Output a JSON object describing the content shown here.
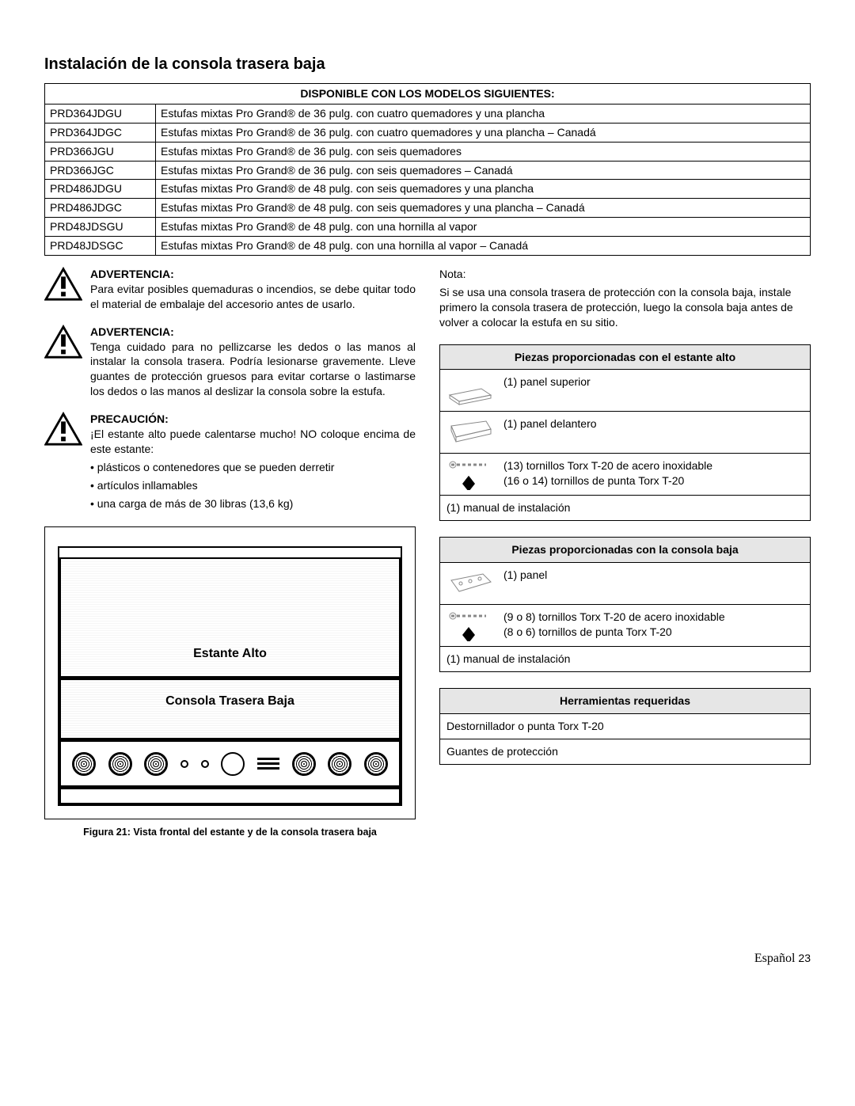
{
  "title": "Instalación de la consola trasera baja",
  "models_header": "DISPONIBLE CON LOS MODELOS SIGUIENTES:",
  "models": [
    {
      "code": "PRD364JDGU",
      "desc": "Estufas mixtas Pro Grand® de 36 pulg. con cuatro quemadores y una plancha"
    },
    {
      "code": "PRD364JDGC",
      "desc": "Estufas mixtas Pro Grand® de 36 pulg. con cuatro quemadores y una plancha – Canadá"
    },
    {
      "code": "PRD366JGU",
      "desc": "Estufas mixtas Pro Grand® de 36 pulg. con seis quemadores"
    },
    {
      "code": "PRD366JGC",
      "desc": "Estufas mixtas Pro Grand® de 36 pulg. con seis quemadores – Canadá"
    },
    {
      "code": "PRD486JDGU",
      "desc": "Estufas mixtas Pro Grand® de 48 pulg. con seis quemadores y una plancha"
    },
    {
      "code": "PRD486JDGC",
      "desc": "Estufas mixtas Pro Grand® de 48 pulg. con seis quemadores y una plancha – Canadá"
    },
    {
      "code": "PRD48JDSGU",
      "desc": "Estufas mixtas Pro Grand® de 48 pulg. con una hornilla al vapor"
    },
    {
      "code": "PRD48JDSGC",
      "desc": "Estufas mixtas Pro Grand® de 48 pulg. con una hornilla al vapor – Canadá"
    }
  ],
  "warn1_head": "ADVERTENCIA:",
  "warn1_body": "Para evitar posibles quemaduras o incendios, se debe quitar todo el material de embalaje del accesorio antes de usarlo.",
  "warn2_head": "ADVERTENCIA:",
  "warn2_body": "Tenga cuidado para no pellizcarse les dedos o las manos al instalar la consola trasera. Podría lesionarse gravemente. Lleve guantes de protección gruesos para evitar cortarse o lastimarse los dedos o las manos al deslizar la consola sobre la estufa.",
  "caution_head": "PRECAUCIÓN:",
  "caution_body": "¡El estante alto puede calentarse mucho! NO coloque encima de este estante:",
  "caution_bullets": [
    "plásticos o contenedores que se pueden derretir",
    "artículos inllamables",
    "una carga de más de 30 libras (13,6 kg)"
  ],
  "fig_label_high": "Estante Alto",
  "fig_label_low": "Consola Trasera Baja",
  "fig_caption": "Figura 21: Vista frontal del estante y de la consola trasera baja",
  "nota_label": "Nota:",
  "nota_text": "Si se usa una consola trasera de protección con la consola baja, instale primero la consola trasera de protección, luego la consola baja antes de volver a colocar la estufa en su sitio.",
  "parts_high_header": "Piezas proporcionadas con el estante alto",
  "parts_high": [
    "(1) panel superior",
    "(1) panel delantero",
    "(13) tornillos Torx T-20 de acero inoxidable\n(16 o 14) tornillos de punta Torx T-20",
    "(1) manual de instalación"
  ],
  "parts_low_header": "Piezas proporcionadas con la consola baja",
  "parts_low": [
    "(1) panel",
    "(9 o 8) tornillos Torx T-20 de acero inoxidable\n(8 o 6) tornillos de punta Torx T-20",
    "(1) manual de instalación"
  ],
  "tools_header": "Herramientas requeridas",
  "tools": [
    "Destornillador o punta Torx T-20",
    "Guantes de protección"
  ],
  "footer_lang": "Español",
  "footer_page": "23",
  "colors": {
    "header_bg": "#e6e6e6",
    "border": "#000000",
    "text": "#000000"
  }
}
